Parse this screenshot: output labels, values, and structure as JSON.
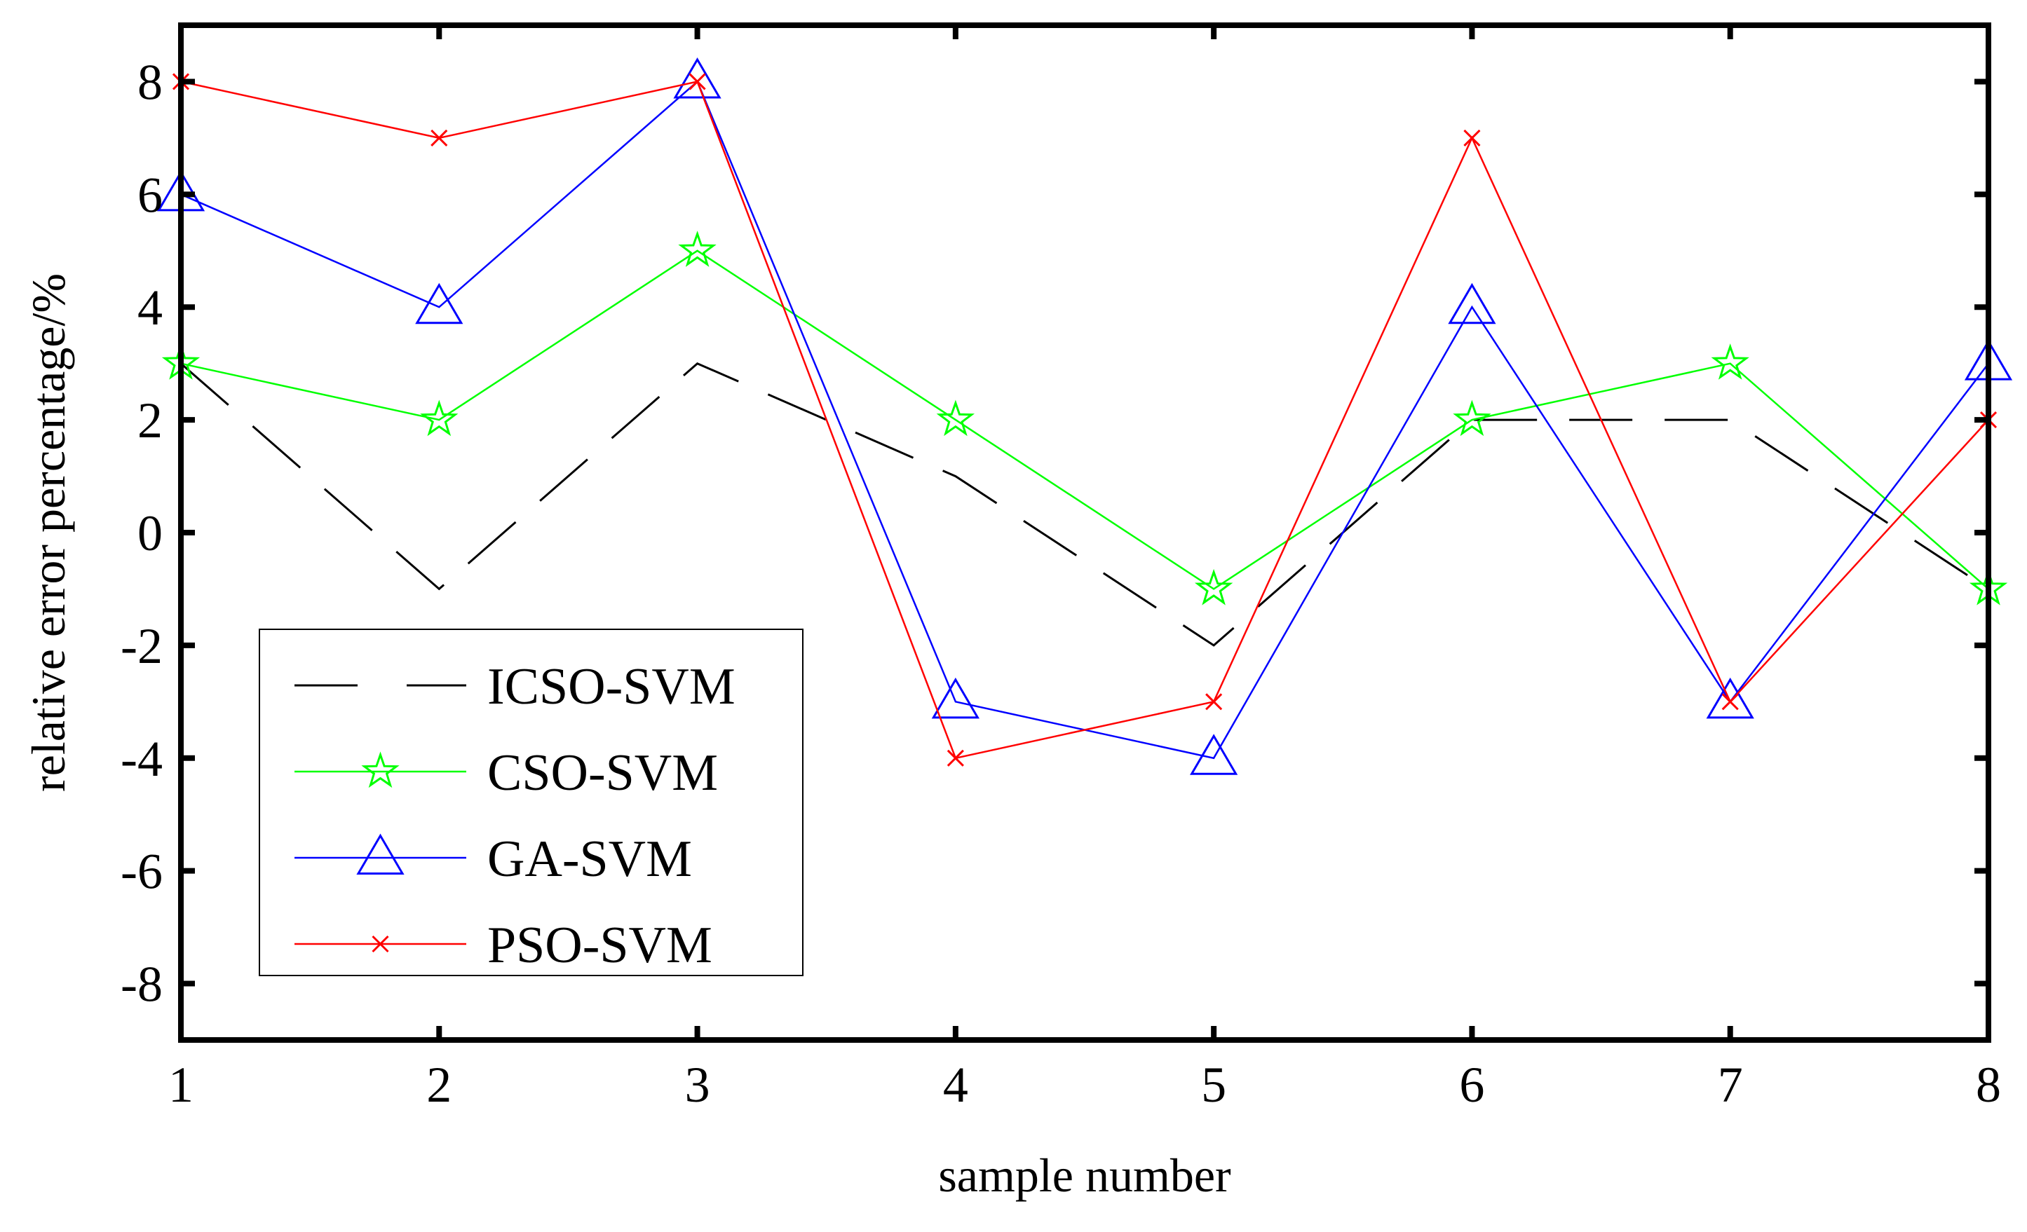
{
  "chart_data": {
    "type": "line",
    "title": "",
    "xlabel": "sample number",
    "ylabel": "relative error percentage/%",
    "x": [
      1,
      2,
      3,
      4,
      5,
      6,
      7,
      8
    ],
    "xlim": [
      1,
      8
    ],
    "ylim": [
      -9,
      9
    ],
    "xticks": [
      "1",
      "2",
      "3",
      "4",
      "5",
      "6",
      "7",
      "8"
    ],
    "yticks": [
      "8",
      "6",
      "4",
      "2",
      "0",
      "-2",
      "-4",
      "-6",
      "-8"
    ],
    "grid": false,
    "legend_position": "bottom-left",
    "series": [
      {
        "name": "ICSO-SVM",
        "color": "#000000",
        "marker": "none",
        "dash": "dashed",
        "values": [
          3,
          -1,
          3,
          1,
          -2,
          2,
          2,
          -1
        ]
      },
      {
        "name": "CSO-SVM",
        "color": "#00ff00",
        "marker": "star",
        "dash": "solid",
        "values": [
          3,
          2,
          5,
          2,
          -1,
          2,
          3,
          -1
        ]
      },
      {
        "name": "GA-SVM",
        "color": "#0000ff",
        "marker": "triangle",
        "dash": "solid",
        "values": [
          6,
          4,
          8,
          -3,
          -4,
          4,
          -3,
          3
        ]
      },
      {
        "name": "PSO-SVM",
        "color": "#ff0000",
        "marker": "x",
        "dash": "solid",
        "values": [
          8,
          7,
          8,
          -4,
          -3,
          7,
          -3,
          2
        ]
      }
    ]
  }
}
